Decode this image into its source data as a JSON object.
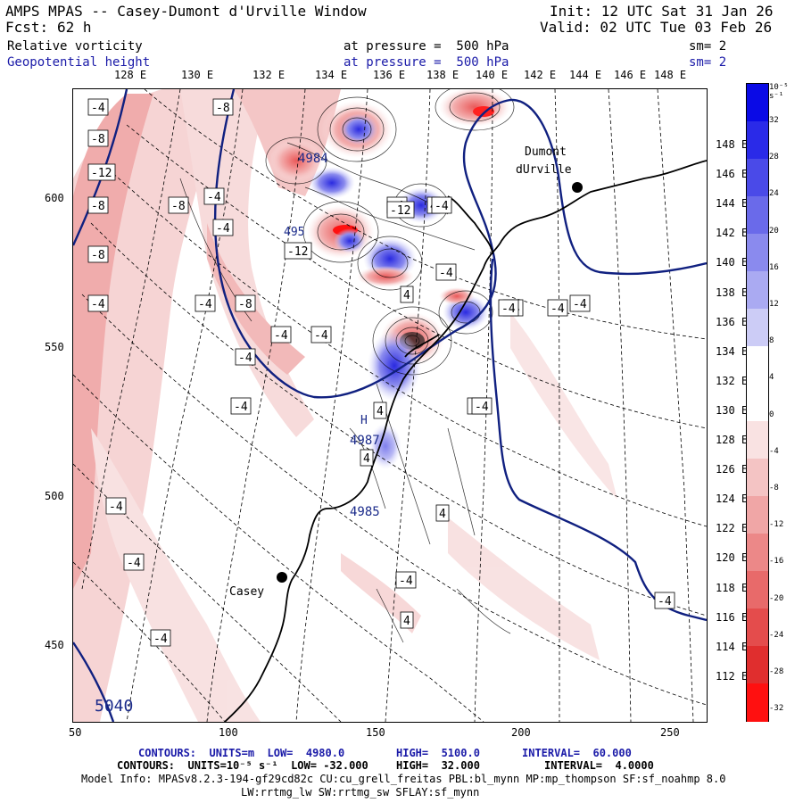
{
  "header": {
    "title": "AMPS MPAS -- Casey-Dumont d'Urville Window",
    "fcst_label": "Fcst:",
    "fcst_value": "62 h",
    "init": "Init: 12 UTC Sat 31 Jan 26",
    "valid": "Valid: 02 UTC Tue 03 Feb 26",
    "field1": "Relative vorticity",
    "field1_pressure": "at pressure =  500 hPa",
    "field1_sm": "sm= 2",
    "field2": "Geopotential height",
    "field2_pressure": "at pressure =  500 hPa",
    "field2_sm": "sm= 2"
  },
  "top_lon_labels": [
    "128 E",
    "130 E",
    "132 E",
    "134 E",
    "136 E",
    "138 E",
    "140 E",
    "142 E",
    "144 E",
    "146 E",
    "148 E"
  ],
  "right_lon_labels": [
    "148 E",
    "146 E",
    "144 E",
    "142 E",
    "140 E",
    "138 E",
    "136 E",
    "134 E",
    "132 E",
    "130 E",
    "128 E",
    "126 E",
    "124 E",
    "122 E",
    "120 E",
    "118 E",
    "116 E",
    "114 E",
    "112 E"
  ],
  "left_axis_labels": [
    "600",
    "550",
    "500",
    "450"
  ],
  "bottom_axis_labels": [
    "50",
    "100",
    "150",
    "200",
    "250"
  ],
  "colorbar": {
    "unit": "10⁻⁵ s⁻¹",
    "labels": [
      "32",
      "28",
      "24",
      "20",
      "16",
      "12",
      "8",
      "4",
      "0",
      "-4",
      "-8",
      "-12",
      "-16",
      "-20",
      "-24",
      "-28",
      "-32"
    ],
    "colors": [
      "#0a0ae6",
      "#2a2ae8",
      "#4a4ae8",
      "#6a6aea",
      "#8a8aee",
      "#aaaaf2",
      "#ccccf6",
      "#ffffff",
      "#ffffff",
      "#f9e2e2",
      "#f4c4c4",
      "#f0a6a6",
      "#ec8888",
      "#e86a6a",
      "#e44c4c",
      "#e02e2e",
      "#ff1010"
    ]
  },
  "map": {
    "stations": [
      {
        "name": "Casey"
      },
      {
        "name_line1": "Dumont",
        "name_line2": "dUrville"
      }
    ],
    "height_labels": [
      "4984",
      "4987",
      "4985",
      "5040",
      "495"
    ],
    "h_marker": "H",
    "vort_labels": [
      "-4",
      "-8",
      "-8",
      "-12",
      "-8",
      "-8",
      "-4",
      "-4",
      "-8",
      "-4",
      "-8",
      "-4",
      "-4",
      "-4",
      "-4",
      "-4",
      "-4",
      "-4",
      "-12",
      "-4",
      "-4",
      "4",
      "-12",
      "4",
      "-4",
      "4",
      "-4",
      "-4",
      "-4",
      "4",
      "-4",
      "4",
      "-4",
      "-4",
      "-4",
      "-4",
      "4",
      "-4"
    ]
  },
  "footer": {
    "line1a": "CONTOURS:  UNITS=m  LOW=  4980.0",
    "line1b": "HIGH=  5100.0",
    "line1c": "INTERVAL=  60.000",
    "line2a": "CONTOURS:  UNITS=10⁻⁵ s⁻¹  LOW= -32.000",
    "line2b": "HIGH=  32.000",
    "line2c": "INTERVAL=  4.0000",
    "line3": "Model Info: MPASv8.2.3-194-gf29cd82c CU:cu_grell_freitas PBL:bl_mynn MP:mp_thompson SF:sf_noahmp 8.0",
    "line4": "LW:rrtmg_lw SW:rrtmg_sw SFLAY:sf_mynn"
  }
}
